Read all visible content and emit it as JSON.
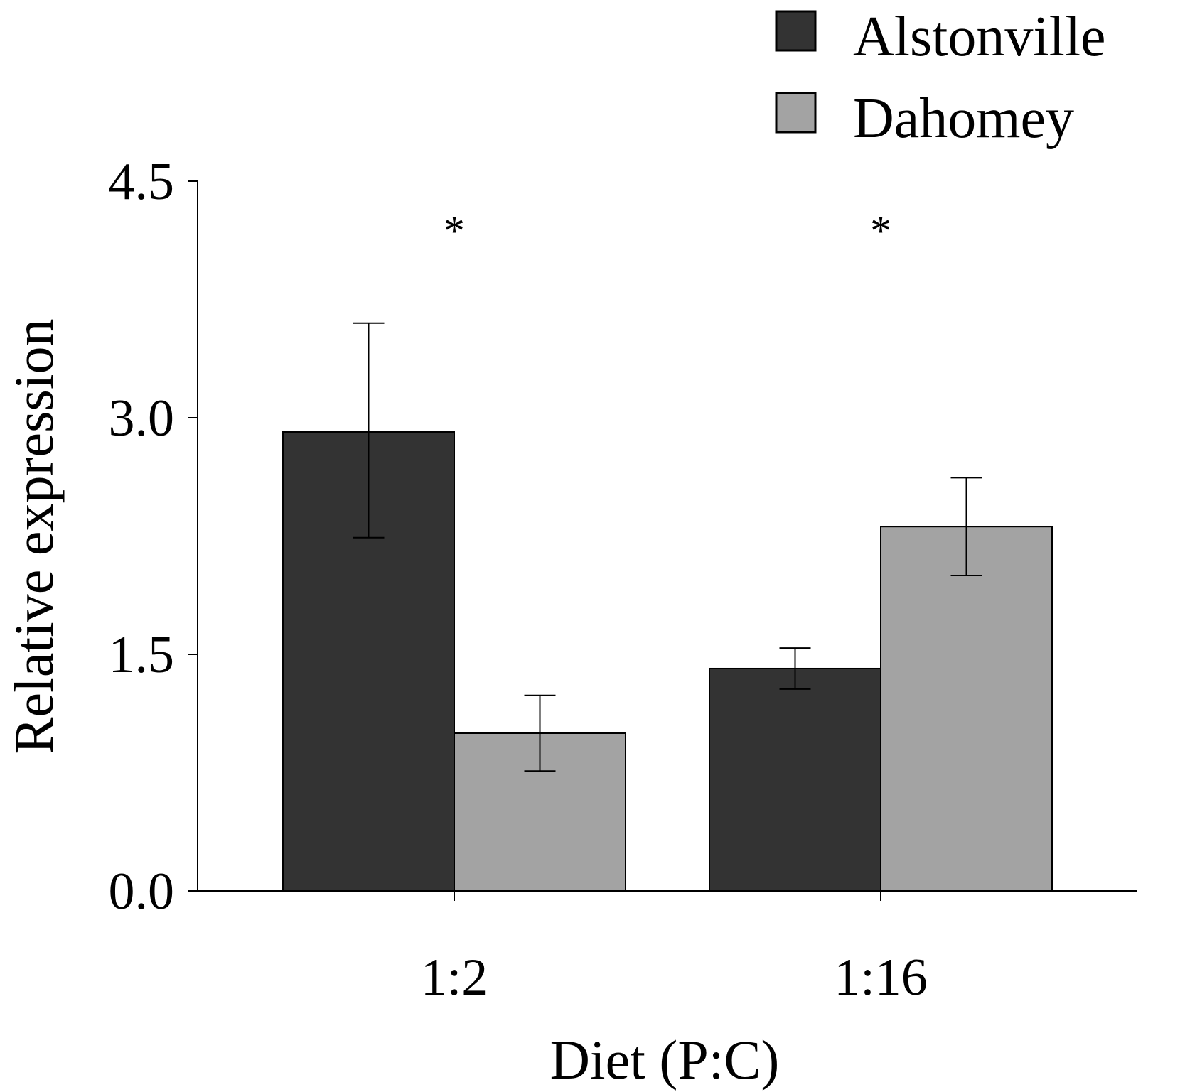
{
  "chart_data": {
    "type": "bar",
    "title": "",
    "xlabel": "Diet (P:C)",
    "ylabel": "Relative expression",
    "ylim": [
      0,
      4.5
    ],
    "yticks": [
      "0.0",
      "1.5",
      "3.0",
      "4.5"
    ],
    "categories": [
      "1:2",
      "1:16"
    ],
    "series": [
      {
        "name": "Alstonville",
        "color": "#333333",
        "values": [
          2.91,
          1.41
        ],
        "error_low": [
          2.24,
          1.28
        ],
        "error_high": [
          3.6,
          1.54
        ]
      },
      {
        "name": "Dahomey",
        "color": "#a3a3a3",
        "values": [
          1.0,
          2.31
        ],
        "error_low": [
          0.76,
          2.0
        ],
        "error_high": [
          1.24,
          2.62
        ]
      }
    ],
    "significance": [
      "*",
      "*"
    ],
    "legend": {
      "position": "top-right",
      "entries": [
        "Alstonville",
        "Dahomey"
      ]
    },
    "grid": false
  }
}
